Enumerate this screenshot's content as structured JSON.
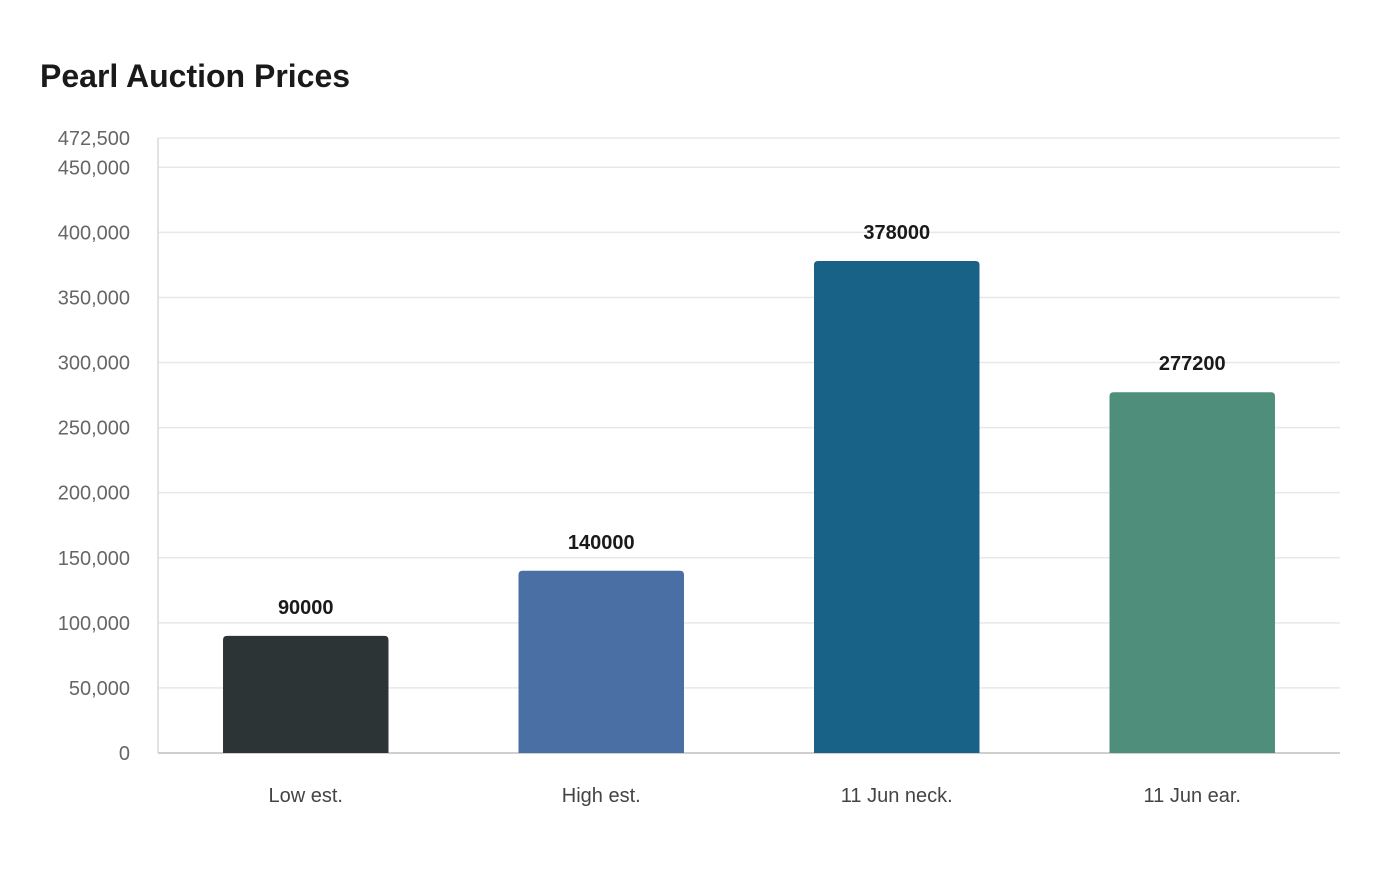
{
  "chart_data": {
    "type": "bar",
    "title": "Pearl Auction Prices",
    "xlabel": "",
    "ylabel": "",
    "categories": [
      "Low est.",
      "High est.",
      "11 Jun neck.",
      "11 Jun ear."
    ],
    "values": [
      90000,
      140000,
      378000,
      277200
    ],
    "value_labels": [
      "90000",
      "140000",
      "378000",
      "277200"
    ],
    "colors": [
      "#2d3436",
      "#4a6fa5",
      "#186187",
      "#4e8e7a"
    ],
    "ylim": [
      0,
      472500
    ],
    "yticks": [
      0,
      50000,
      100000,
      150000,
      200000,
      250000,
      300000,
      350000,
      400000,
      450000,
      472500
    ],
    "ytick_labels": [
      "0",
      "50,000",
      "100,000",
      "150,000",
      "200,000",
      "250,000",
      "300,000",
      "350,000",
      "400,000",
      "450,000",
      "472,500"
    ],
    "grid": true,
    "legend": "none"
  }
}
